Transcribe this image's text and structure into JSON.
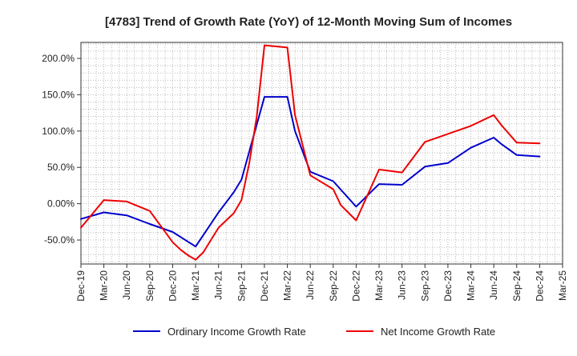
{
  "chart_data": {
    "type": "line",
    "title": "[4783]  Trend of Growth Rate (YoY) of 12-Month Moving Sum of Incomes",
    "xlabel": "",
    "ylabel": "",
    "x_ticks": [
      "Dec-19",
      "Mar-20",
      "Jun-20",
      "Sep-20",
      "Dec-20",
      "Mar-21",
      "Jun-21",
      "Sep-21",
      "Dec-21",
      "Mar-22",
      "Jun-22",
      "Sep-22",
      "Dec-22",
      "Mar-23",
      "Jun-23",
      "Sep-23",
      "Dec-23",
      "Mar-24",
      "Jun-24",
      "Sep-24",
      "Dec-24",
      "Mar-25"
    ],
    "y_ticks": [
      -50,
      0,
      50,
      100,
      150,
      200
    ],
    "y_tick_labels": [
      "-50.0%",
      "0.00%",
      "50.0%",
      "100.0%",
      "150.0%",
      "200.0%"
    ],
    "ylim": [
      -83,
      222
    ],
    "grid": true,
    "legend_position": "bottom",
    "series": [
      {
        "name": "Ordinary Income Growth Rate",
        "color": "#0000cc",
        "points": [
          [
            "Dec-19",
            -21
          ],
          [
            "Mar-20",
            -12
          ],
          [
            "Jun-20",
            -16
          ],
          [
            "Sep-20",
            -28
          ],
          [
            "Dec-20",
            -39
          ],
          [
            "Mar-21",
            -59
          ],
          [
            "Jun-21",
            -12
          ],
          [
            "Jul-21",
            2
          ],
          [
            "Aug-21",
            16
          ],
          [
            "Sep-21",
            33
          ],
          [
            "Dec-21",
            147
          ],
          [
            "Mar-22",
            147
          ],
          [
            "Apr-22",
            100
          ],
          [
            "Jun-22",
            44
          ],
          [
            "Sep-22",
            31
          ],
          [
            "Dec-22",
            -4
          ],
          [
            "Mar-23",
            27
          ],
          [
            "Jun-23",
            26
          ],
          [
            "Sep-23",
            51
          ],
          [
            "Dec-23",
            56
          ],
          [
            "Mar-24",
            77
          ],
          [
            "Jun-24",
            91
          ],
          [
            "Jul-24",
            82
          ],
          [
            "Sep-24",
            67
          ],
          [
            "Dec-24",
            65
          ]
        ]
      },
      {
        "name": "Net Income Growth Rate",
        "color": "#ee0000",
        "points": [
          [
            "Dec-19",
            -33
          ],
          [
            "Mar-20",
            5
          ],
          [
            "Jun-20",
            3
          ],
          [
            "Sep-20",
            -10
          ],
          [
            "Dec-20",
            -53
          ],
          [
            "Jan-21",
            -63
          ],
          [
            "Feb-21",
            -71
          ],
          [
            "Mar-21",
            -77
          ],
          [
            "Apr-21",
            -67
          ],
          [
            "Jun-21",
            -33
          ],
          [
            "Aug-21",
            -13
          ],
          [
            "Sep-21",
            5
          ],
          [
            "Oct-21",
            55
          ],
          [
            "Nov-21",
            120
          ],
          [
            "Dec-21",
            218
          ],
          [
            "Mar-22",
            215
          ],
          [
            "Apr-22",
            122
          ],
          [
            "Jun-22",
            39
          ],
          [
            "Sep-22",
            20
          ],
          [
            "Oct-22",
            -2
          ],
          [
            "Dec-22",
            -23
          ],
          [
            "Mar-23",
            47
          ],
          [
            "Jun-23",
            43
          ],
          [
            "Sep-23",
            85
          ],
          [
            "Dec-23",
            96
          ],
          [
            "Mar-24",
            107
          ],
          [
            "Jun-24",
            122
          ],
          [
            "Jul-24",
            108
          ],
          [
            "Sep-24",
            84
          ],
          [
            "Dec-24",
            83
          ]
        ]
      }
    ]
  }
}
